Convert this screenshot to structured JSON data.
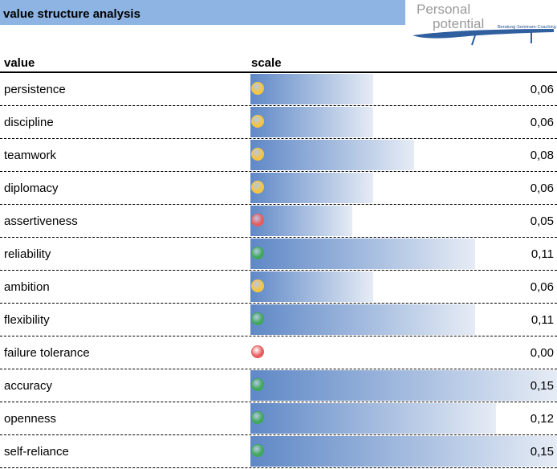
{
  "header": {
    "title": "value structure analysis",
    "logo": {
      "line1": "Personal",
      "line2": "potential",
      "tagline": "Beratung·Seminare·Coaching"
    }
  },
  "columns": {
    "value": "value",
    "scale": "scale"
  },
  "scale_max": 0.15,
  "status_colors": {
    "yellow": "#f5c542",
    "red": "#e85c5c",
    "green": "#3fa85a"
  },
  "rows": [
    {
      "label": "persistence",
      "value": 0.06,
      "display": "0,06",
      "status": "yellow"
    },
    {
      "label": "discipline",
      "value": 0.06,
      "display": "0,06",
      "status": "yellow"
    },
    {
      "label": "teamwork",
      "value": 0.08,
      "display": "0,08",
      "status": "yellow"
    },
    {
      "label": "diplomacy",
      "value": 0.06,
      "display": "0,06",
      "status": "yellow"
    },
    {
      "label": "assertiveness",
      "value": 0.05,
      "display": "0,05",
      "status": "red"
    },
    {
      "label": "reliability",
      "value": 0.11,
      "display": "0,11",
      "status": "green"
    },
    {
      "label": "ambition",
      "value": 0.06,
      "display": "0,06",
      "status": "yellow"
    },
    {
      "label": "flexibility",
      "value": 0.11,
      "display": "0,11",
      "status": "green"
    },
    {
      "label": "failure tolerance",
      "value": 0.0,
      "display": "0,00",
      "status": "red"
    },
    {
      "label": "accuracy",
      "value": 0.15,
      "display": "0,15",
      "status": "green"
    },
    {
      "label": "openness",
      "value": 0.12,
      "display": "0,12",
      "status": "green"
    },
    {
      "label": "self-reliance",
      "value": 0.15,
      "display": "0,15",
      "status": "green"
    }
  ]
}
